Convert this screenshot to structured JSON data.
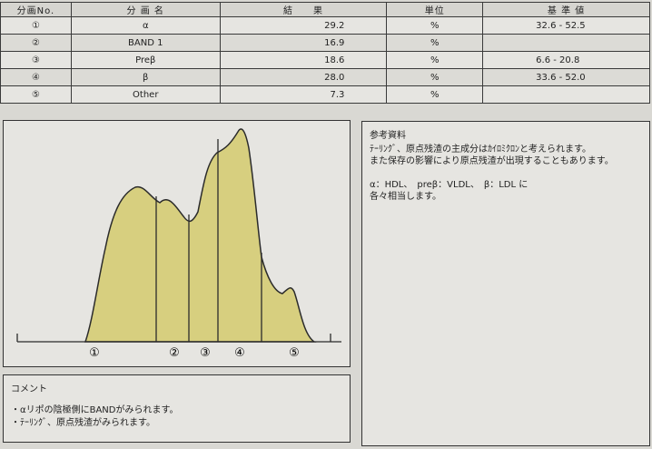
{
  "table": {
    "headers": [
      "分画No.",
      "分 画 名",
      "結　　果",
      "単位",
      "基 準 値"
    ],
    "rows": [
      {
        "no": "①",
        "name": "α",
        "result": "29.2",
        "unit": "%",
        "ref": "32.6 - 52.5"
      },
      {
        "no": "②",
        "name": "BAND 1",
        "result": "16.9",
        "unit": "%",
        "ref": ""
      },
      {
        "no": "③",
        "name": "Preβ",
        "result": "18.6",
        "unit": "%",
        "ref": "6.6 - 20.8"
      },
      {
        "no": "④",
        "name": "β",
        "result": "28.0",
        "unit": "%",
        "ref": "33.6 - 52.0"
      },
      {
        "no": "⑤",
        "name": "Other",
        "result": "7.3",
        "unit": "%",
        "ref": ""
      }
    ]
  },
  "graph": {
    "fill_color": "#d7cf7f",
    "labels": [
      "①",
      "②",
      "③",
      "④",
      "⑤"
    ]
  },
  "reference": {
    "title": "参考資料",
    "lines": [
      "ﾃｰﾘﾝｸﾞ、原点残渣の主成分はｶｲﾛﾐｸﾛﾝと考えられます。",
      "また保存の影響により原点残渣が出現することもあります。",
      "",
      "α：HDL、　preβ：VLDL、　β：LDL に",
      "各々相当します。"
    ]
  },
  "comment": {
    "title": "コメント",
    "lines": [
      "・αリポの陰極側にBANDがみられます。",
      "・ﾃｰﾘﾝｸﾞ、原点残渣がみられます。"
    ]
  }
}
